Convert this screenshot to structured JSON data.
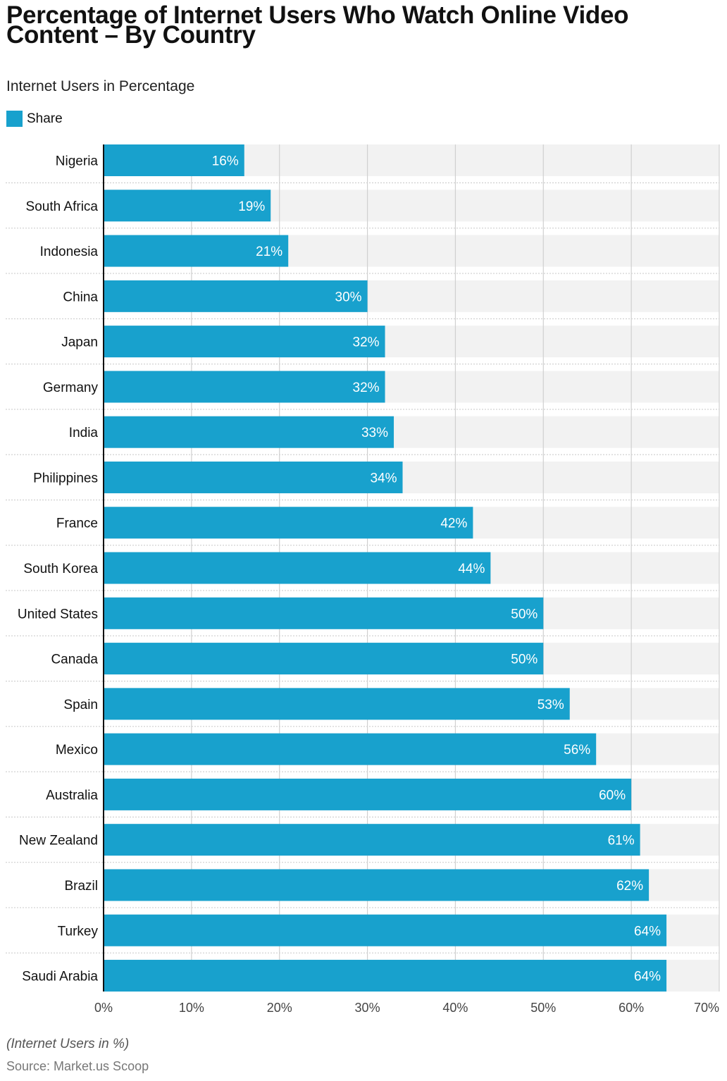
{
  "chart_data": {
    "type": "bar",
    "orientation": "horizontal",
    "title": "Percentage of Internet Users Who Watch Online Video Content – By Country",
    "subtitle": "Internet Users in Percentage",
    "legend": {
      "position": "top-left",
      "entries": [
        "Share"
      ]
    },
    "categories": [
      "Nigeria",
      "South Africa",
      "Indonesia",
      "China",
      "Japan",
      "Germany",
      "India",
      "Philippines",
      "France",
      "South Korea",
      "United States",
      "Canada",
      "Spain",
      "Mexico",
      "Australia",
      "New Zealand",
      "Brazil",
      "Turkey",
      "Saudi Arabia"
    ],
    "series": [
      {
        "name": "Share",
        "values": [
          16,
          19,
          21,
          30,
          32,
          32,
          33,
          34,
          42,
          44,
          50,
          50,
          53,
          56,
          60,
          61,
          62,
          64,
          64
        ],
        "color": "#18a1cd"
      }
    ],
    "data_labels": [
      "16%",
      "19%",
      "21%",
      "30%",
      "32%",
      "32%",
      "33%",
      "34%",
      "42%",
      "44%",
      "50%",
      "50%",
      "53%",
      "56%",
      "60%",
      "61%",
      "62%",
      "64%",
      "64%"
    ],
    "xlim": [
      0,
      70
    ],
    "x_ticks": [
      "0%",
      "10%",
      "20%",
      "30%",
      "40%",
      "50%",
      "60%",
      "70%"
    ],
    "grid": true,
    "note": "(Internet Users in %)",
    "source": "Source: Market.us Scoop"
  }
}
